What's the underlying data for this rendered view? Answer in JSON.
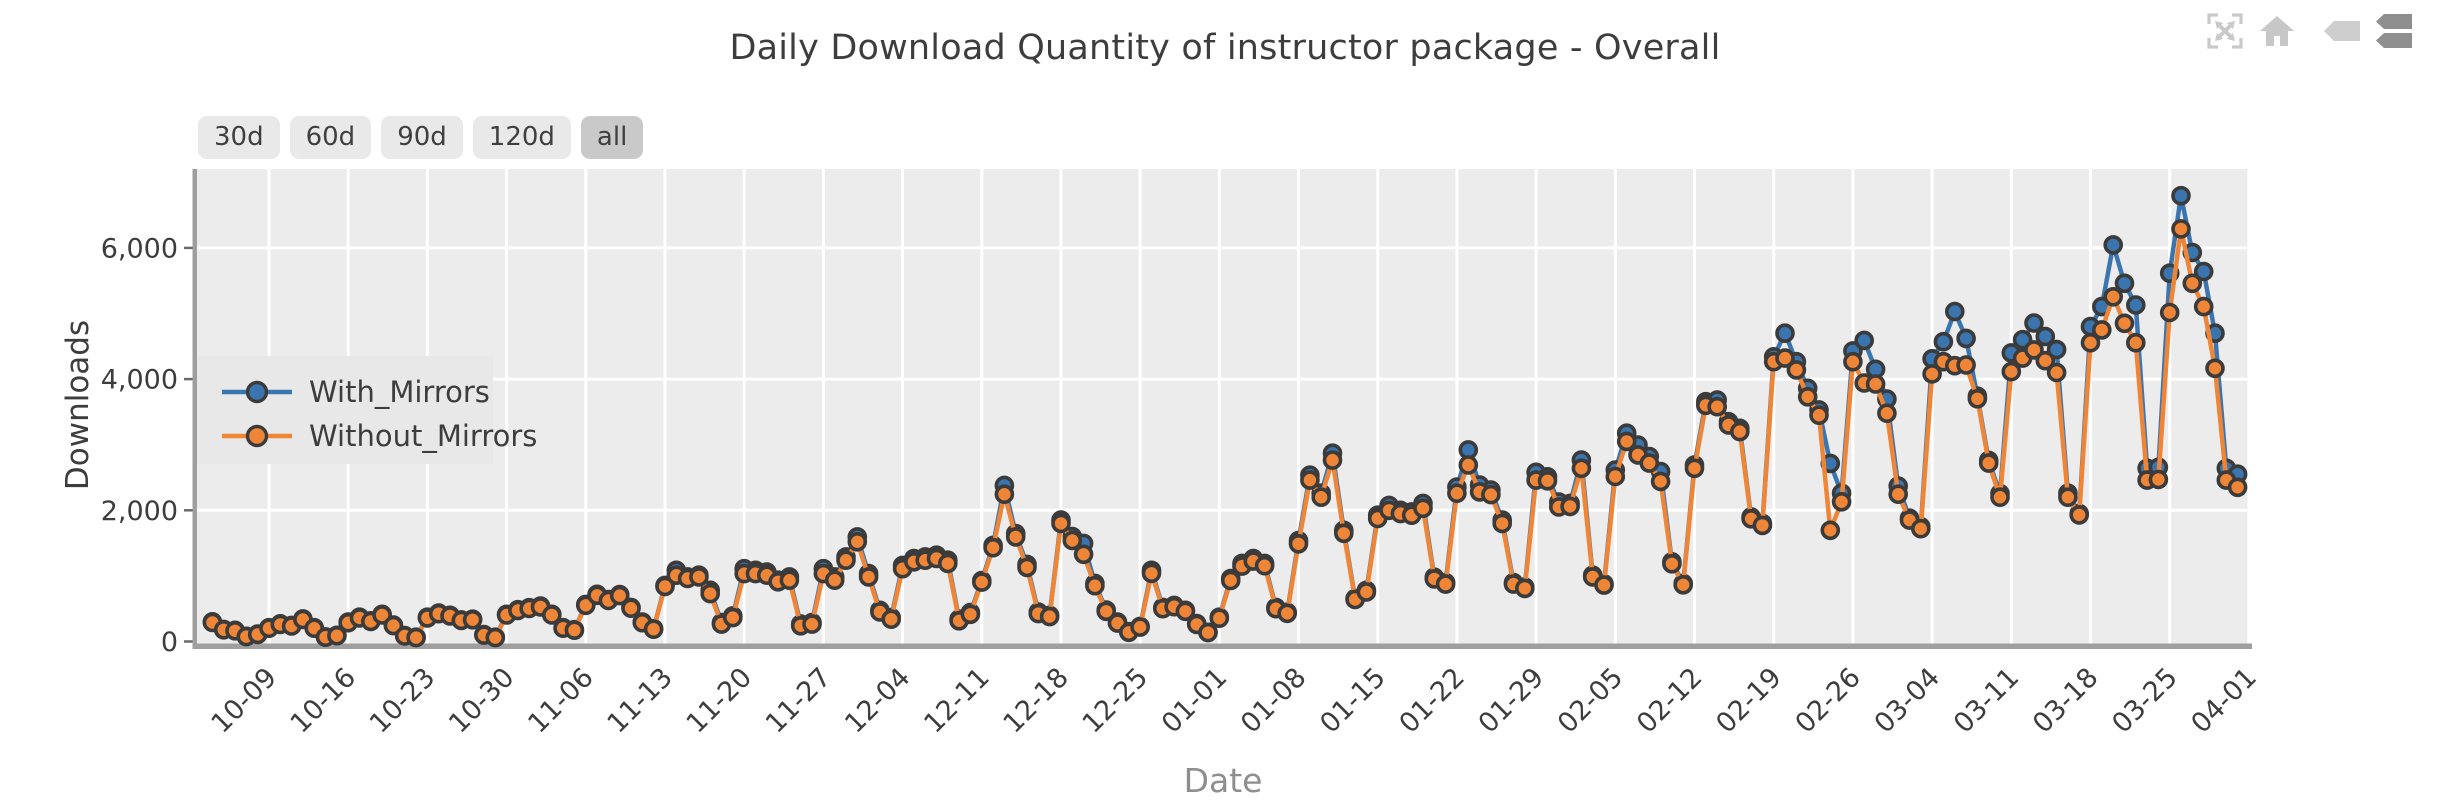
{
  "title": "Daily Download Quantity of instructor package - Overall",
  "toolbar": {
    "icons": [
      "expand-icon",
      "home-icon",
      "tooltip-single-icon",
      "tooltip-stacked-icon"
    ]
  },
  "range_buttons": {
    "options": [
      "30d",
      "60d",
      "90d",
      "120d",
      "all"
    ],
    "selected": "all"
  },
  "colors": {
    "with_mirrors": "#3B75AF",
    "without_mirrors": "#EF8536",
    "marker_edge": "#3B3B3B",
    "plot_background": "#ECECEC",
    "gridline": "#FFFFFF",
    "axis_line": "#9F9F9F",
    "tick_text": "#3D3D3D",
    "xlabel_text": "#8E8E8E",
    "legend_background": "#E8E8E8"
  },
  "chart_data": {
    "type": "line",
    "title": "Daily Download Quantity of instructor package - Overall",
    "xlabel": "Date",
    "ylabel": "Downloads",
    "ylim": [
      0,
      7200
    ],
    "grid": true,
    "legend_position": "center-left",
    "start_date": "10-04",
    "x_tick_labels": [
      "10-09",
      "10-16",
      "10-23",
      "10-30",
      "11-06",
      "11-13",
      "11-20",
      "11-27",
      "12-04",
      "12-11",
      "12-18",
      "12-25",
      "01-01",
      "01-08",
      "01-15",
      "01-22",
      "01-29",
      "02-05",
      "02-12",
      "02-19",
      "02-26",
      "03-04",
      "03-11",
      "03-18",
      "03-25",
      "04-01"
    ],
    "y_ticks": [
      0,
      2000,
      4000,
      6000
    ],
    "y_tick_labels": [
      "0",
      "2,000",
      "4,000",
      "6,000"
    ],
    "series": [
      {
        "name": "With_Mirrors",
        "color": "#3B75AF",
        "values": [
          300,
          185,
          170,
          80,
          115,
          210,
          270,
          245,
          345,
          210,
          70,
          95,
          295,
          370,
          315,
          415,
          250,
          90,
          65,
          370,
          435,
          400,
          330,
          340,
          105,
          65,
          415,
          485,
          515,
          540,
          415,
          210,
          180,
          565,
          720,
          640,
          715,
          520,
          295,
          195,
          855,
          1085,
          985,
          1010,
          780,
          290,
          390,
          1110,
          1085,
          1060,
          935,
          985,
          265,
          290,
          1110,
          985,
          1290,
          1595,
          1035,
          475,
          365,
          1160,
          1265,
          1290,
          1315,
          1240,
          340,
          440,
          930,
          1465,
          2380,
          1645,
          1175,
          450,
          400,
          1850,
          1600,
          1495,
          885,
          480,
          295,
          150,
          230,
          1085,
          520,
          550,
          475,
          275,
          140,
          370,
          960,
          1190,
          1265,
          1190,
          520,
          445,
          1540,
          2535,
          2260,
          2870,
          1695,
          655,
          780,
          1925,
          2075,
          2000,
          1975,
          2105,
          980,
          900,
          2355,
          2920,
          2385,
          2310,
          1850,
          900,
          830,
          2580,
          2510,
          2125,
          2105,
          2765,
          1010,
          880,
          2615,
          3175,
          2995,
          2820,
          2590,
          1215,
          885,
          2690,
          3655,
          3680,
          3350,
          3250,
          1900,
          1800,
          4340,
          4700,
          4265,
          3860,
          3530,
          2715,
          2260,
          4430,
          4590,
          4150,
          3695,
          2370,
          1880,
          1750,
          4310,
          4570,
          5030,
          4620,
          3740,
          2760,
          2255,
          4400,
          4600,
          4855,
          4650,
          4450,
          2260,
          1950,
          4800,
          5105,
          6045,
          5460,
          5130,
          2640,
          2655,
          5615,
          6795,
          5930,
          5640,
          4700,
          2640,
          2550
        ]
      },
      {
        "name": "Without_Mirrors",
        "color": "#EF8536",
        "values": [
          290,
          178,
          163,
          75,
          108,
          202,
          261,
          237,
          335,
          202,
          65,
          88,
          287,
          360,
          306,
          404,
          242,
          84,
          60,
          360,
          424,
          390,
          321,
          331,
          98,
          60,
          404,
          473,
          503,
          528,
          404,
          202,
          172,
          552,
          705,
          625,
          700,
          508,
          286,
          188,
          840,
          1010,
          960,
          985,
          730,
          265,
          365,
          1035,
          1035,
          1010,
          910,
          935,
          240,
          265,
          1035,
          935,
          1240,
          1520,
          985,
          450,
          340,
          1110,
          1215,
          1240,
          1265,
          1190,
          315,
          415,
          905,
          1430,
          2245,
          1595,
          1130,
          425,
          380,
          1800,
          1540,
          1330,
          850,
          460,
          280,
          140,
          220,
          1040,
          500,
          530,
          460,
          260,
          135,
          355,
          930,
          1150,
          1225,
          1155,
          500,
          430,
          1490,
          2460,
          2200,
          2765,
          1650,
          640,
          755,
          1875,
          2000,
          1950,
          1925,
          2030,
          955,
          875,
          2260,
          2690,
          2280,
          2240,
          1800,
          875,
          810,
          2460,
          2450,
          2050,
          2060,
          2640,
          985,
          860,
          2515,
          3050,
          2845,
          2720,
          2440,
          1185,
          865,
          2640,
          3600,
          3580,
          3300,
          3200,
          1870,
          1770,
          4265,
          4320,
          4140,
          3730,
          3450,
          1695,
          2130,
          4265,
          3940,
          3925,
          3480,
          2245,
          1850,
          1720,
          4080,
          4265,
          4205,
          4215,
          3700,
          2720,
          2200,
          4115,
          4320,
          4445,
          4280,
          4100,
          2200,
          1930,
          4555,
          4750,
          5255,
          4850,
          4555,
          2460,
          2470,
          5015,
          6290,
          5460,
          5105,
          4165,
          2460,
          2350
        ]
      }
    ]
  }
}
